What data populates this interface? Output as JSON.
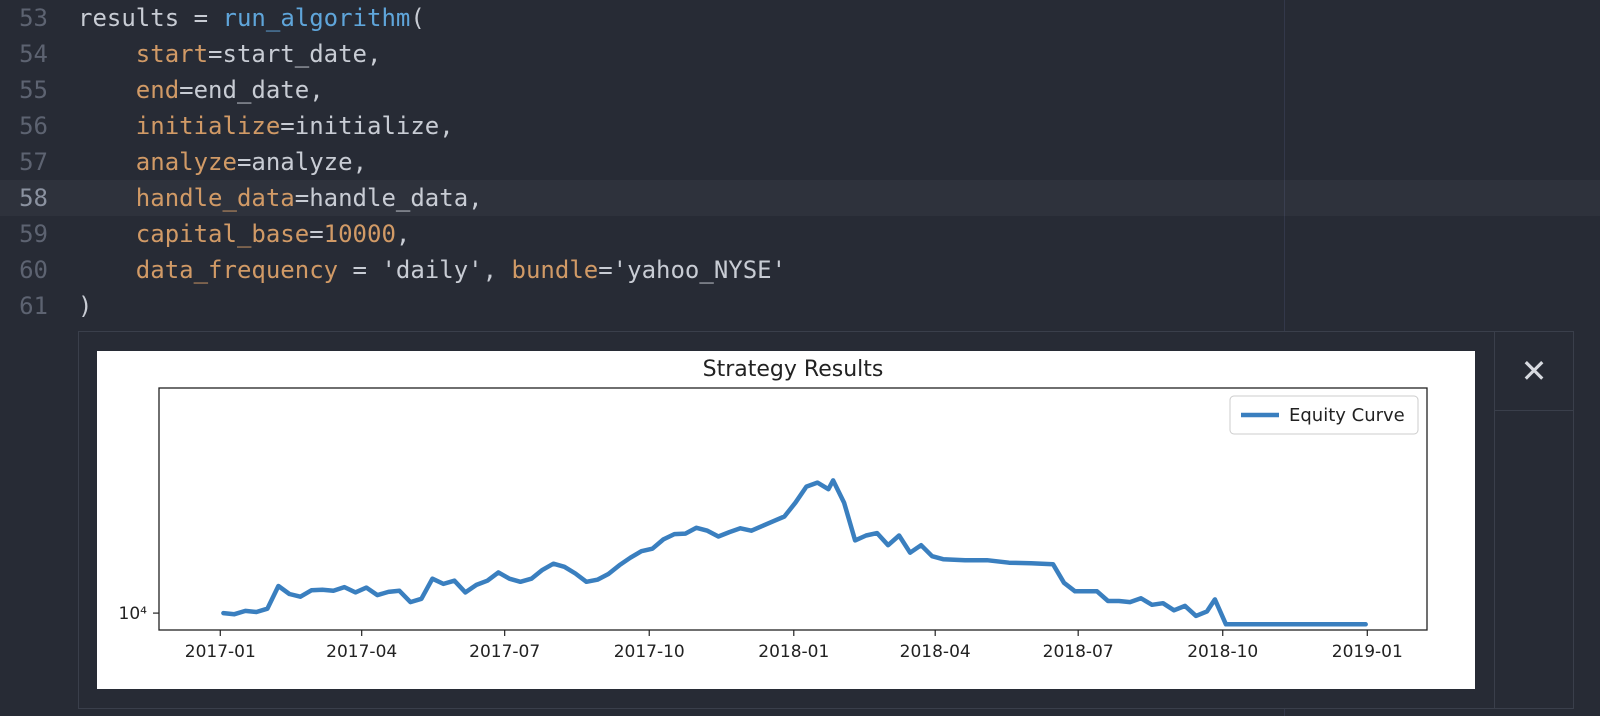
{
  "editor": {
    "lines": [
      {
        "num": "53",
        "tokens": [
          [
            "ident",
            "results"
          ],
          [
            "punc",
            " = "
          ],
          [
            "func",
            "run_algorithm"
          ],
          [
            "punc",
            "("
          ]
        ]
      },
      {
        "num": "54",
        "tokens": [
          [
            "punc",
            "    "
          ],
          [
            "kw",
            "start"
          ],
          [
            "punc",
            "="
          ],
          [
            "ident",
            "start_date"
          ],
          [
            "punc",
            ","
          ]
        ]
      },
      {
        "num": "55",
        "tokens": [
          [
            "punc",
            "    "
          ],
          [
            "kw",
            "end"
          ],
          [
            "punc",
            "="
          ],
          [
            "ident",
            "end_date"
          ],
          [
            "punc",
            ","
          ]
        ]
      },
      {
        "num": "56",
        "tokens": [
          [
            "punc",
            "    "
          ],
          [
            "kw",
            "initialize"
          ],
          [
            "punc",
            "="
          ],
          [
            "ident",
            "initialize"
          ],
          [
            "punc",
            ","
          ]
        ]
      },
      {
        "num": "57",
        "tokens": [
          [
            "punc",
            "    "
          ],
          [
            "kw",
            "analyze"
          ],
          [
            "punc",
            "="
          ],
          [
            "ident",
            "analyze"
          ],
          [
            "punc",
            ","
          ]
        ]
      },
      {
        "num": "58",
        "active": true,
        "tokens": [
          [
            "punc",
            "    "
          ],
          [
            "kw",
            "handle_data"
          ],
          [
            "punc",
            "="
          ],
          [
            "ident",
            "handle_data"
          ],
          [
            "punc",
            ","
          ]
        ]
      },
      {
        "num": "59",
        "tokens": [
          [
            "punc",
            "    "
          ],
          [
            "kw",
            "capital_base"
          ],
          [
            "punc",
            "="
          ],
          [
            "num",
            "10000"
          ],
          [
            "punc",
            ","
          ]
        ]
      },
      {
        "num": "60",
        "tokens": [
          [
            "punc",
            "    "
          ],
          [
            "kw",
            "data_frequency"
          ],
          [
            "punc",
            " = "
          ],
          [
            "str",
            "'daily'"
          ],
          [
            "punc",
            ", "
          ],
          [
            "kw",
            "bundle"
          ],
          [
            "punc",
            "="
          ],
          [
            "str",
            "'yahoo_NYSE'"
          ]
        ]
      },
      {
        "num": "61",
        "tokens": [
          [
            "punc",
            ")"
          ]
        ]
      }
    ]
  },
  "output": {
    "close_icon": "close-icon",
    "close_glyph": "✕"
  },
  "chart_data": {
    "type": "line",
    "title": "Strategy Results",
    "xlabel": "",
    "ylabel": "",
    "y_scale": "log",
    "y_ticks": [
      {
        "value": 10000,
        "label": "10⁴"
      }
    ],
    "x_ticks": [
      "2017-01",
      "2017-04",
      "2017-07",
      "2017-10",
      "2018-01",
      "2018-04",
      "2018-07",
      "2018-10",
      "2019-01"
    ],
    "xlim": [
      "2016-11-23",
      "2019-02-08"
    ],
    "ylim": [
      9700,
      15000
    ],
    "legend": {
      "position": "top-right"
    },
    "grid": false,
    "series": [
      {
        "name": "Equity Curve",
        "color": "#3a7fbf",
        "points": [
          [
            "2017-01-03",
            10000
          ],
          [
            "2017-01-10",
            9980
          ],
          [
            "2017-01-17",
            10040
          ],
          [
            "2017-01-24",
            10020
          ],
          [
            "2017-01-31",
            10080
          ],
          [
            "2017-02-07",
            10500
          ],
          [
            "2017-02-14",
            10350
          ],
          [
            "2017-02-21",
            10300
          ],
          [
            "2017-02-28",
            10420
          ],
          [
            "2017-03-07",
            10430
          ],
          [
            "2017-03-14",
            10410
          ],
          [
            "2017-03-21",
            10480
          ],
          [
            "2017-03-28",
            10380
          ],
          [
            "2017-04-04",
            10470
          ],
          [
            "2017-04-11",
            10330
          ],
          [
            "2017-04-18",
            10390
          ],
          [
            "2017-04-25",
            10410
          ],
          [
            "2017-05-02",
            10200
          ],
          [
            "2017-05-09",
            10260
          ],
          [
            "2017-05-16",
            10640
          ],
          [
            "2017-05-23",
            10540
          ],
          [
            "2017-05-30",
            10600
          ],
          [
            "2017-06-06",
            10380
          ],
          [
            "2017-06-13",
            10520
          ],
          [
            "2017-06-20",
            10600
          ],
          [
            "2017-06-27",
            10760
          ],
          [
            "2017-07-04",
            10640
          ],
          [
            "2017-07-11",
            10580
          ],
          [
            "2017-07-18",
            10640
          ],
          [
            "2017-07-25",
            10810
          ],
          [
            "2017-08-01",
            10930
          ],
          [
            "2017-08-08",
            10870
          ],
          [
            "2017-08-15",
            10740
          ],
          [
            "2017-08-22",
            10580
          ],
          [
            "2017-08-29",
            10620
          ],
          [
            "2017-09-05",
            10730
          ],
          [
            "2017-09-12",
            10900
          ],
          [
            "2017-09-19",
            11050
          ],
          [
            "2017-09-26",
            11180
          ],
          [
            "2017-10-03",
            11230
          ],
          [
            "2017-10-10",
            11420
          ],
          [
            "2017-10-17",
            11530
          ],
          [
            "2017-10-24",
            11540
          ],
          [
            "2017-10-31",
            11660
          ],
          [
            "2017-11-07",
            11600
          ],
          [
            "2017-11-14",
            11480
          ],
          [
            "2017-11-21",
            11570
          ],
          [
            "2017-11-28",
            11650
          ],
          [
            "2017-12-05",
            11600
          ],
          [
            "2017-12-12",
            11700
          ],
          [
            "2017-12-19",
            11800
          ],
          [
            "2017-12-26",
            11900
          ],
          [
            "2018-01-02",
            12200
          ],
          [
            "2018-01-09",
            12560
          ],
          [
            "2018-01-16",
            12650
          ],
          [
            "2018-01-23",
            12500
          ],
          [
            "2018-01-26",
            12700
          ],
          [
            "2018-02-02",
            12200
          ],
          [
            "2018-02-09",
            11400
          ],
          [
            "2018-02-16",
            11500
          ],
          [
            "2018-02-23",
            11550
          ],
          [
            "2018-03-02",
            11300
          ],
          [
            "2018-03-09",
            11500
          ],
          [
            "2018-03-16",
            11150
          ],
          [
            "2018-03-23",
            11300
          ],
          [
            "2018-03-30",
            11080
          ],
          [
            "2018-04-06",
            11020
          ],
          [
            "2018-04-13",
            11010
          ],
          [
            "2018-04-20",
            11000
          ],
          [
            "2018-05-04",
            11000
          ],
          [
            "2018-05-18",
            10950
          ],
          [
            "2018-06-01",
            10940
          ],
          [
            "2018-06-15",
            10920
          ],
          [
            "2018-06-22",
            10560
          ],
          [
            "2018-06-29",
            10400
          ],
          [
            "2018-07-06",
            10400
          ],
          [
            "2018-07-13",
            10400
          ],
          [
            "2018-07-20",
            10220
          ],
          [
            "2018-07-27",
            10220
          ],
          [
            "2018-08-03",
            10200
          ],
          [
            "2018-08-10",
            10270
          ],
          [
            "2018-08-17",
            10150
          ],
          [
            "2018-08-24",
            10180
          ],
          [
            "2018-08-31",
            10050
          ],
          [
            "2018-09-07",
            10130
          ],
          [
            "2018-09-14",
            9950
          ],
          [
            "2018-09-21",
            10030
          ],
          [
            "2018-09-26",
            10250
          ],
          [
            "2018-10-03",
            9800
          ],
          [
            "2018-10-31",
            9800
          ],
          [
            "2018-11-30",
            9800
          ],
          [
            "2018-12-31",
            9800
          ]
        ]
      }
    ]
  }
}
